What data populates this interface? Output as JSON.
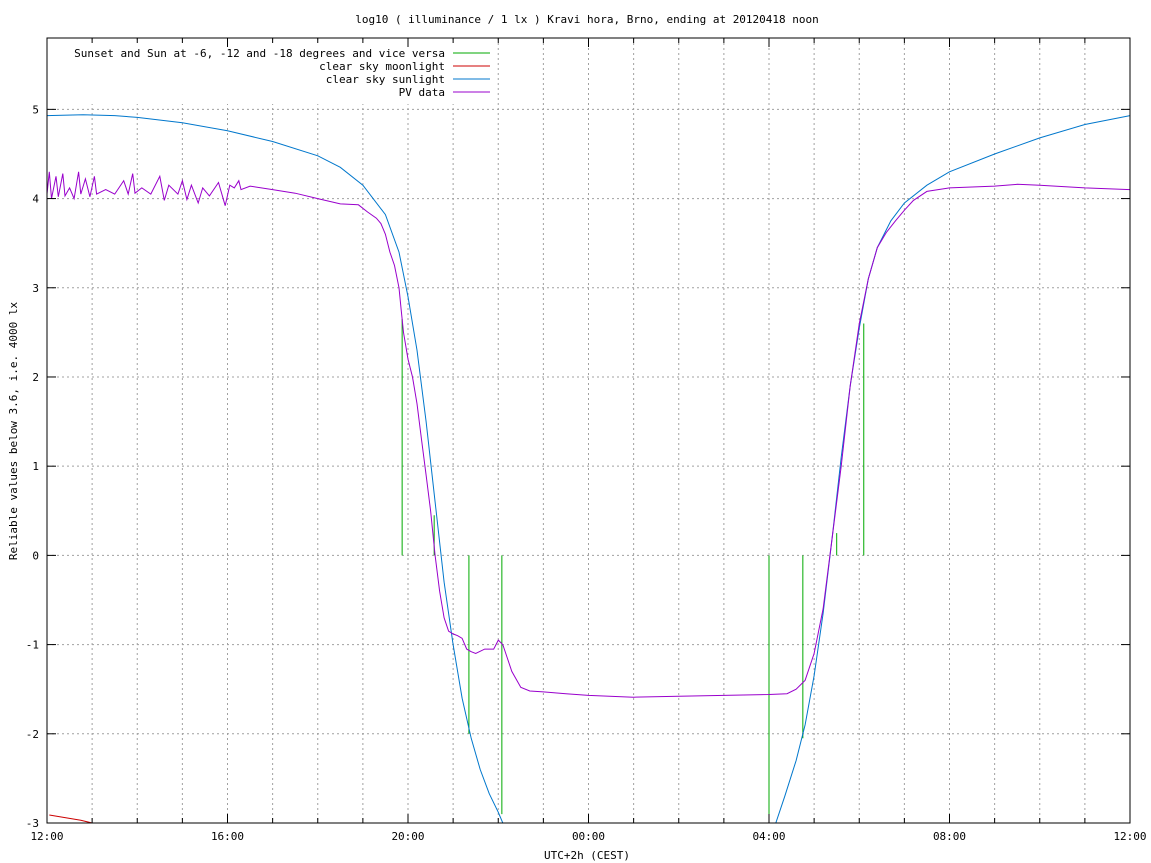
{
  "chart_data": {
    "type": "line",
    "title": "log10 ( illuminance / 1 lx ) Kravi hora, Brno, ending at 20120418 noon",
    "xlabel": "UTC+2h (CEST)",
    "ylabel": "Reliable values below 3.6, i.e. 4000 lx",
    "xlim": [
      0,
      24
    ],
    "ylim": [
      -3,
      5.8
    ],
    "x_unit": "hours since 12:00 local (UTC+2h), 2012-04-17 to 2012-04-18",
    "x_ticks": [
      {
        "x": 0,
        "label": "12:00"
      },
      {
        "x": 4,
        "label": "16:00"
      },
      {
        "x": 8,
        "label": "20:00"
      },
      {
        "x": 12,
        "label": "00:00"
      },
      {
        "x": 16,
        "label": "04:00"
      },
      {
        "x": 20,
        "label": "08:00"
      },
      {
        "x": 24,
        "label": "12:00"
      }
    ],
    "y_ticks": [
      {
        "y": 5,
        "label": "5"
      },
      {
        "y": 4,
        "label": "4"
      },
      {
        "y": 3,
        "label": "3"
      },
      {
        "y": 2,
        "label": "2"
      },
      {
        "y": 1,
        "label": "1"
      },
      {
        "y": 0,
        "label": "0"
      },
      {
        "y": -1,
        "label": "-1"
      },
      {
        "y": -2,
        "label": "-2"
      },
      {
        "y": -3,
        "label": "-3"
      }
    ],
    "grid": true,
    "legend_position": "top-left",
    "series": [
      {
        "name": "Sunset and Sun at -6, -12 and -18 degrees and vice versa",
        "color": "#00aa00",
        "type": "impulses",
        "points": [
          [
            7.87,
            2.65
          ],
          [
            8.58,
            0.45
          ],
          [
            9.35,
            -2.0
          ],
          [
            10.08,
            -2.9
          ],
          [
            16.0,
            -2.95
          ],
          [
            16.75,
            -2.05
          ],
          [
            17.5,
            0.25
          ],
          [
            18.1,
            2.6
          ]
        ]
      },
      {
        "name": "clear sky moonlight",
        "color": "#cc0000",
        "type": "line",
        "points": [
          [
            0.05,
            -2.91
          ],
          [
            0.4,
            -2.94
          ],
          [
            0.75,
            -2.97
          ],
          [
            1.0,
            -3.0
          ]
        ]
      },
      {
        "name": "clear sky sunlight",
        "color": "#0077cc",
        "type": "line",
        "points": [
          [
            0,
            4.93
          ],
          [
            0.8,
            4.94
          ],
          [
            1.5,
            4.93
          ],
          [
            2,
            4.91
          ],
          [
            3,
            4.85
          ],
          [
            4,
            4.76
          ],
          [
            5,
            4.64
          ],
          [
            6,
            4.48
          ],
          [
            6.5,
            4.35
          ],
          [
            7,
            4.15
          ],
          [
            7.5,
            3.82
          ],
          [
            7.8,
            3.4
          ],
          [
            8.0,
            2.9
          ],
          [
            8.2,
            2.3
          ],
          [
            8.4,
            1.5
          ],
          [
            8.6,
            0.6
          ],
          [
            8.8,
            -0.3
          ],
          [
            9.0,
            -1.0
          ],
          [
            9.2,
            -1.6
          ],
          [
            9.4,
            -2.05
          ],
          [
            9.6,
            -2.4
          ],
          [
            9.8,
            -2.67
          ],
          [
            10.0,
            -2.88
          ],
          [
            10.1,
            -3.0
          ],
          [
            16.15,
            -3.0
          ],
          [
            16.35,
            -2.7
          ],
          [
            16.6,
            -2.3
          ],
          [
            16.8,
            -1.9
          ],
          [
            17.0,
            -1.35
          ],
          [
            17.2,
            -0.65
          ],
          [
            17.4,
            0.2
          ],
          [
            17.6,
            1.1
          ],
          [
            17.8,
            1.9
          ],
          [
            18.0,
            2.55
          ],
          [
            18.2,
            3.1
          ],
          [
            18.4,
            3.45
          ],
          [
            18.7,
            3.75
          ],
          [
            19,
            3.95
          ],
          [
            19.5,
            4.15
          ],
          [
            20,
            4.3
          ],
          [
            21,
            4.5
          ],
          [
            22,
            4.68
          ],
          [
            23,
            4.83
          ],
          [
            24,
            4.93
          ]
        ]
      },
      {
        "name": "PV data",
        "color": "#9900cc",
        "type": "line",
        "points": [
          [
            0,
            4.05
          ],
          [
            0.05,
            4.3
          ],
          [
            0.1,
            4.0
          ],
          [
            0.2,
            4.25
          ],
          [
            0.25,
            4.02
          ],
          [
            0.35,
            4.28
          ],
          [
            0.4,
            4.03
          ],
          [
            0.5,
            4.12
          ],
          [
            0.6,
            4.0
          ],
          [
            0.7,
            4.3
          ],
          [
            0.75,
            4.05
          ],
          [
            0.85,
            4.22
          ],
          [
            0.95,
            4.02
          ],
          [
            1.05,
            4.25
          ],
          [
            1.1,
            4.05
          ],
          [
            1.3,
            4.1
          ],
          [
            1.5,
            4.05
          ],
          [
            1.7,
            4.2
          ],
          [
            1.8,
            4.05
          ],
          [
            1.9,
            4.28
          ],
          [
            1.95,
            4.06
          ],
          [
            2.1,
            4.12
          ],
          [
            2.3,
            4.05
          ],
          [
            2.5,
            4.25
          ],
          [
            2.6,
            3.98
          ],
          [
            2.7,
            4.15
          ],
          [
            2.9,
            4.05
          ],
          [
            3.0,
            4.2
          ],
          [
            3.1,
            3.99
          ],
          [
            3.2,
            4.15
          ],
          [
            3.35,
            3.95
          ],
          [
            3.45,
            4.12
          ],
          [
            3.6,
            4.03
          ],
          [
            3.8,
            4.18
          ],
          [
            3.95,
            3.92
          ],
          [
            4.05,
            4.15
          ],
          [
            4.15,
            4.12
          ],
          [
            4.25,
            4.2
          ],
          [
            4.3,
            4.1
          ],
          [
            4.5,
            4.14
          ],
          [
            5.0,
            4.1
          ],
          [
            5.5,
            4.06
          ],
          [
            6.0,
            4.0
          ],
          [
            6.5,
            3.94
          ],
          [
            6.9,
            3.93
          ],
          [
            7.1,
            3.85
          ],
          [
            7.3,
            3.78
          ],
          [
            7.4,
            3.72
          ],
          [
            7.5,
            3.6
          ],
          [
            7.6,
            3.4
          ],
          [
            7.7,
            3.25
          ],
          [
            7.8,
            3.0
          ],
          [
            7.85,
            2.75
          ],
          [
            7.9,
            2.5
          ],
          [
            8.0,
            2.2
          ],
          [
            8.1,
            2.0
          ],
          [
            8.2,
            1.7
          ],
          [
            8.3,
            1.3
          ],
          [
            8.4,
            0.9
          ],
          [
            8.5,
            0.5
          ],
          [
            8.6,
            0.0
          ],
          [
            8.7,
            -0.4
          ],
          [
            8.8,
            -0.7
          ],
          [
            8.9,
            -0.85
          ],
          [
            9.0,
            -0.88
          ],
          [
            9.1,
            -0.9
          ],
          [
            9.2,
            -0.93
          ],
          [
            9.3,
            -1.05
          ],
          [
            9.4,
            -1.08
          ],
          [
            9.5,
            -1.1
          ],
          [
            9.7,
            -1.05
          ],
          [
            9.9,
            -1.05
          ],
          [
            10.0,
            -0.95
          ],
          [
            10.1,
            -1.0
          ],
          [
            10.2,
            -1.15
          ],
          [
            10.3,
            -1.3
          ],
          [
            10.5,
            -1.48
          ],
          [
            10.7,
            -1.52
          ],
          [
            11,
            -1.53
          ],
          [
            11.5,
            -1.55
          ],
          [
            12,
            -1.57
          ],
          [
            13,
            -1.59
          ],
          [
            14,
            -1.58
          ],
          [
            15,
            -1.57
          ],
          [
            16,
            -1.56
          ],
          [
            16.4,
            -1.55
          ],
          [
            16.6,
            -1.5
          ],
          [
            16.8,
            -1.4
          ],
          [
            17.0,
            -1.1
          ],
          [
            17.2,
            -0.6
          ],
          [
            17.4,
            0.2
          ],
          [
            17.6,
            1.0
          ],
          [
            17.8,
            1.9
          ],
          [
            18.0,
            2.6
          ],
          [
            18.2,
            3.1
          ],
          [
            18.4,
            3.45
          ],
          [
            18.6,
            3.62
          ],
          [
            18.8,
            3.75
          ],
          [
            19.0,
            3.87
          ],
          [
            19.2,
            3.98
          ],
          [
            19.5,
            4.08
          ],
          [
            20,
            4.12
          ],
          [
            21,
            4.14
          ],
          [
            21.5,
            4.16
          ],
          [
            22,
            4.15
          ],
          [
            23,
            4.12
          ],
          [
            24,
            4.1
          ]
        ]
      }
    ]
  }
}
